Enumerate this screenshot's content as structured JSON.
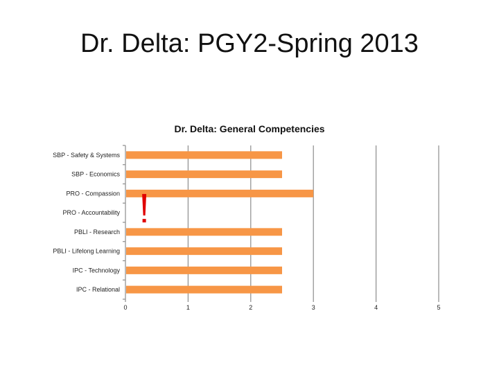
{
  "slide": {
    "title": "Dr. Delta: PGY2-Spring 2013"
  },
  "chart_data": {
    "type": "bar",
    "orientation": "horizontal",
    "title": "Dr. Delta: General Competencies",
    "xlabel": "",
    "ylabel": "",
    "categories": [
      "SBP - Safety & Systems",
      "SBP - Economics",
      "PRO - Compassion",
      "PRO - Accountability",
      "PBLI - Research",
      "PBLI - Lifelong Learning",
      "IPC - Technology",
      "IPC - Relational"
    ],
    "values": [
      2.5,
      2.5,
      3,
      null,
      2.5,
      2.5,
      2.5,
      2.5
    ],
    "xlim": [
      0,
      5
    ],
    "xticks": [
      "0",
      "1",
      "2",
      "3",
      "4",
      "5"
    ],
    "grid": "vertical",
    "legend": "none",
    "annotation": {
      "text": "!",
      "near_category": "PRO - Accountability",
      "x": 0.3
    },
    "colors": {
      "bar": "#f79646",
      "grid": "#8c8c8c",
      "annotation": "#e00000"
    }
  }
}
